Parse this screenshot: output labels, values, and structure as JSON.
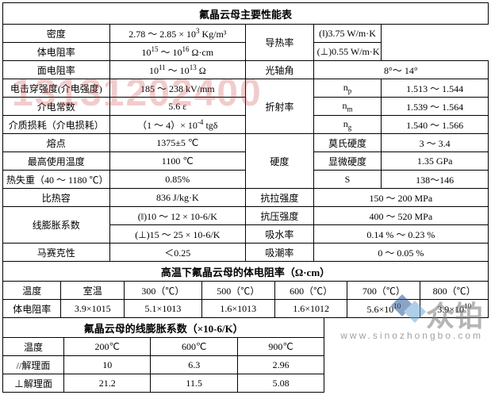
{
  "watermark_number": "13131202400",
  "watermark_logo_text": "众铂",
  "watermark_url": "www.sinozhongbo.com",
  "main": {
    "title": "氟晶云母主要性能表",
    "rows": [
      {
        "l": "密度",
        "v": "2.78 ～ 2.85 × 10³ Kg/m³",
        "r": "导热率",
        "s1": "(‖)3.75 W/m·K",
        "rs": 2
      },
      {
        "l": "体电阻率",
        "v": "10¹⁵ ～ 10¹⁶ Ω·cm",
        "s1": "(⊥)0.55 W/m·K"
      },
      {
        "l": "面电阻率",
        "v": "10¹¹ ～ 10¹³ Ω",
        "r": "光轴角",
        "s1": "8°～ 14°",
        "cs": 2
      },
      {
        "l": "电击穿强度(介电强度)",
        "v": "185 ～ 238 kV/mm",
        "r": "折射率",
        "s": "nₚ",
        "s1": "1.513 ～ 1.544",
        "rs": 3
      },
      {
        "l": "介电常数",
        "v": "5.6 ε",
        "s": "nₘ",
        "s1": "1.539 ～ 1.564"
      },
      {
        "l": "介质损耗（介电损耗）",
        "v": "（1 ～ 4）× 10⁻⁴ tgδ",
        "s": "n_g",
        "s1": "1.540 ～ 1.566"
      },
      {
        "l": "熔点",
        "v": "1375±5 ℃",
        "r": "硬度",
        "s": "莫氏硬度",
        "s1": "3 ～ 3.4",
        "rs": 3
      },
      {
        "l": "最高使用温度",
        "v": "1100 ℃",
        "s": "显微硬度",
        "s1": "1.35 GPa"
      },
      {
        "l": "热失重（40 ～ 1180 ℃）",
        "v": "0.85%",
        "s": "S",
        "s1": "138～146"
      },
      {
        "l": "比热容",
        "v": "836 J/kg·K",
        "r": "抗拉强度",
        "s1": "150 ～ 200 MPa",
        "cs": 2
      },
      {
        "l": "线膨胀系数",
        "v": "(‖)10 ～ 12 × 10-6/K",
        "r": "抗压强度",
        "s1": "400 ～ 520 MPa",
        "cs": 2,
        "lrs": 2
      },
      {
        "v": "(⊥)15 ～ 25 × 10-6/K",
        "r": "吸水率",
        "s1": "0.14 % ～ 0.23 %",
        "cs": 2
      },
      {
        "l": "马赛克性",
        "v": "＜0.25",
        "r": "吸潮率",
        "s1": "0 ～ 0.05 %",
        "cs": 2
      }
    ]
  },
  "resist": {
    "title": "高温下氟晶云母的体电阻率（Ω·cm）",
    "header": [
      "温度",
      "室温",
      "300（℃）",
      "500（℃）",
      "600（℃）",
      "700（℃）",
      "800（℃）"
    ],
    "row": [
      "体电阻率",
      "3.9×1015",
      "5.1×1013",
      "1.6×1013",
      "1.6×1012",
      "5.6×10¹⁰",
      "3.9×10¹⁰"
    ]
  },
  "expand": {
    "title": "氟晶云母的线膨胀系数（×10-6/K）",
    "rows": [
      [
        "温度",
        "200℃",
        "600℃",
        "900℃"
      ],
      [
        "//解理面",
        "10",
        "6.3",
        "2.96"
      ],
      [
        "⊥解理面",
        "21.2",
        "11.5",
        "5.08"
      ]
    ]
  },
  "colors": {
    "border": "#000000",
    "background": "#ffffff",
    "text": "#000000",
    "watermark_num": "rgba(200,50,50,0.25)",
    "watermark_logo": "rgba(120,120,120,0.55)",
    "diamond1": "#2a5a9a",
    "diamond2": "#6fa8d8"
  }
}
